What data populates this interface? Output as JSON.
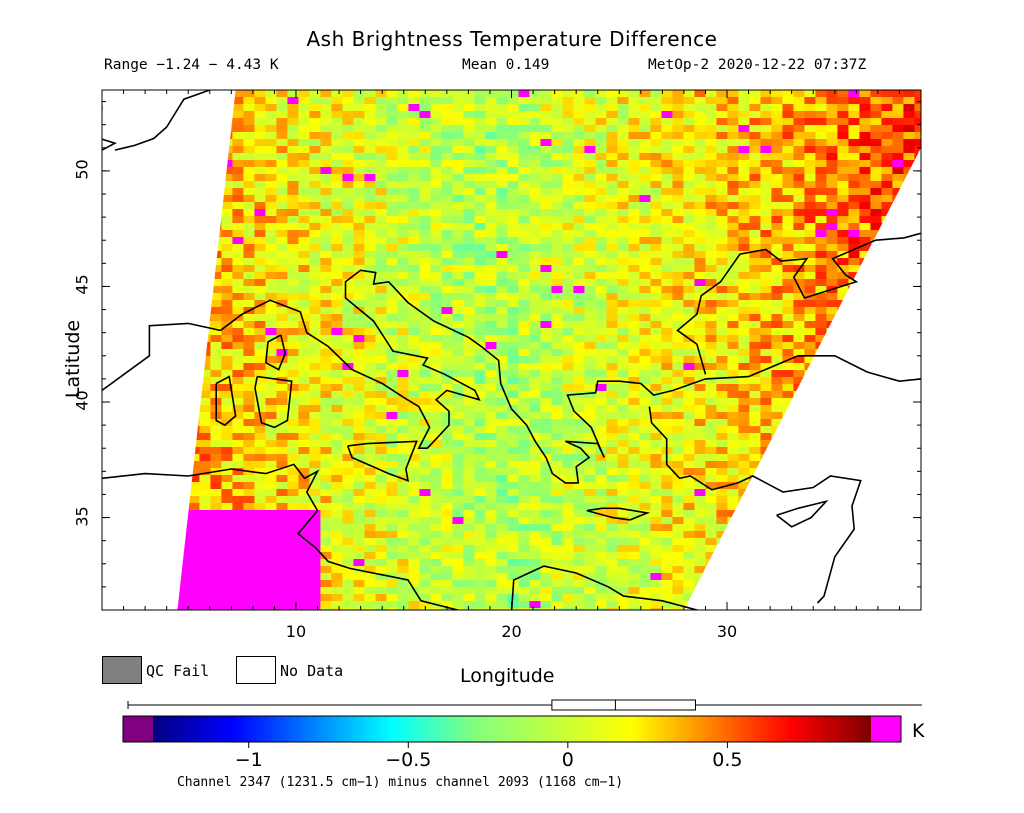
{
  "chart_data": {
    "type": "heatmap",
    "title": "Ash Brightness Temperature Difference",
    "subtitle_range": "Range −1.24 − 4.43 K",
    "subtitle_mean": "Mean 0.149",
    "subtitle_source": "MetOp-2 2020-12-22 07:37Z",
    "xlabel": "Longitude",
    "ylabel": "Latitude",
    "xlim": [
      1,
      39
    ],
    "ylim": [
      31,
      53.5
    ],
    "xticks": [
      "10",
      "20",
      "30"
    ],
    "xtick_values": [
      10,
      20,
      30
    ],
    "yticks": [
      "35",
      "40",
      "45",
      "50"
    ],
    "ytick_values": [
      35,
      40,
      45,
      50
    ],
    "swath_corners_lonlat": [
      [
        7.2,
        53.5
      ],
      [
        39,
        53.5
      ],
      [
        39,
        51
      ],
      [
        28,
        31
      ],
      [
        4.5,
        31
      ]
    ],
    "colorbar": {
      "min": -1.3,
      "max": 0.95,
      "unit": "K",
      "ticks": [
        "−1",
        "−0.5",
        "0",
        "0.5"
      ],
      "tick_values": [
        -1,
        -0.5,
        0,
        0.5
      ],
      "colors": [
        "#000080",
        "#0000ff",
        "#0080ff",
        "#00ffff",
        "#80ff80",
        "#c0ff40",
        "#ffff00",
        "#ff8000",
        "#ff0000",
        "#800000"
      ],
      "underflow_color": "#800080",
      "overflow_color": "#ff00ff",
      "boxplot": {
        "whisker_low": -1.24,
        "q1": -0.05,
        "median": 0.149,
        "q3": 0.4,
        "whisker_high": 4.43
      }
    },
    "field_description_values": {
      "mean": 0.149,
      "min": -1.24,
      "max": 4.43
    }
  },
  "legend": {
    "qc_fail_label": "QC Fail",
    "no_data_label": "No Data",
    "qc_fail_color": "#808080",
    "no_data_color": "#ffffff"
  },
  "footer": "Channel 2347 (1231.5 cm−1) minus channel 2093 (1168 cm−1)"
}
